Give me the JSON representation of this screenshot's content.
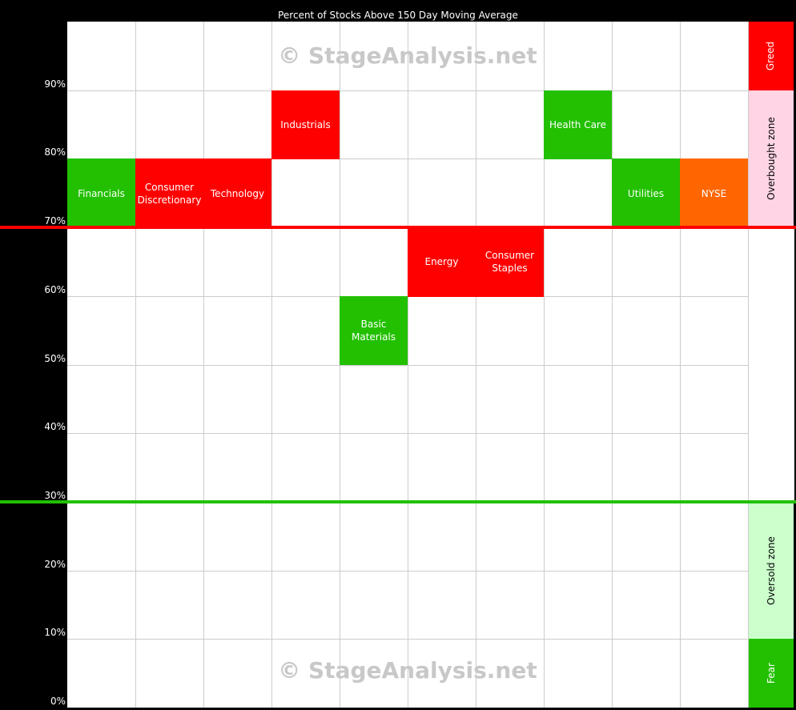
{
  "chart_data": {
    "type": "heatmap",
    "title": "Percent of Stocks Above 150 Day Moving Average",
    "ylim": [
      0,
      100
    ],
    "y_ticks": [
      "0%",
      "10%",
      "20%",
      "30%",
      "40%",
      "50%",
      "60%",
      "70%",
      "80%",
      "90%"
    ],
    "grid": true,
    "watermark": "© StageAnalysis.net",
    "thresholds": [
      {
        "value": 70,
        "color": "#ff0000"
      },
      {
        "value": 30,
        "color": "#22c000"
      }
    ],
    "cells": [
      {
        "label": "Financials",
        "column": 1,
        "range": [
          70,
          80
        ],
        "color": "#22c000"
      },
      {
        "label": "Consumer Discretionary",
        "column": 2,
        "range": [
          70,
          80
        ],
        "color": "#ff0000"
      },
      {
        "label": "Technology",
        "column": 3,
        "range": [
          70,
          80
        ],
        "color": "#ff0000"
      },
      {
        "label": "Industrials",
        "column": 4,
        "range": [
          80,
          90
        ],
        "color": "#ff0000"
      },
      {
        "label": "Basic Materials",
        "column": 5,
        "range": [
          50,
          60
        ],
        "color": "#22c000"
      },
      {
        "label": "Energy",
        "column": 6,
        "range": [
          60,
          70
        ],
        "color": "#ff0000"
      },
      {
        "label": "Consumer Staples",
        "column": 7,
        "range": [
          60,
          70
        ],
        "color": "#ff0000"
      },
      {
        "label": "Health Care",
        "column": 8,
        "range": [
          80,
          90
        ],
        "color": "#22c000"
      },
      {
        "label": "Utilities",
        "column": 9,
        "range": [
          70,
          80
        ],
        "color": "#22c000"
      },
      {
        "label": "NYSE",
        "column": 10,
        "range": [
          70,
          80
        ],
        "color": "#ff6600"
      }
    ],
    "zones": [
      {
        "label": "Greed",
        "range": [
          90,
          100
        ],
        "color": "#ff0000",
        "text_color": "#ffffff"
      },
      {
        "label": "Overbought zone",
        "range": [
          70,
          90
        ],
        "color": "#ffd5e5",
        "text_color": "#000000"
      },
      {
        "label": "",
        "range": [
          30,
          70
        ],
        "color": "#ffffff",
        "text_color": "#000000"
      },
      {
        "label": "Oversold zone",
        "range": [
          10,
          30
        ],
        "color": "#ccffcc",
        "text_color": "#000000"
      },
      {
        "label": "Fear",
        "range": [
          0,
          10
        ],
        "color": "#22c000",
        "text_color": "#ffffff"
      }
    ]
  }
}
